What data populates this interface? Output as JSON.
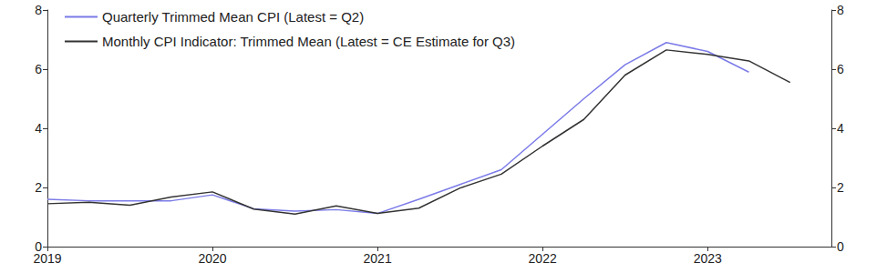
{
  "chart_data": {
    "type": "line",
    "x": [
      2019,
      2019.25,
      2019.5,
      2019.75,
      2020,
      2020.25,
      2020.5,
      2020.75,
      2021,
      2021.25,
      2021.5,
      2021.75,
      2022,
      2022.25,
      2022.5,
      2022.75,
      2023,
      2023.25,
      2023.5
    ],
    "series": [
      {
        "name": "Quarterly Trimmed Mean CPI (Latest = Q2)",
        "color": "#7b7be8",
        "values": [
          1.6,
          1.55,
          1.55,
          1.55,
          1.75,
          1.28,
          1.2,
          1.25,
          1.12,
          1.6,
          2.1,
          2.6,
          3.8,
          5.0,
          6.15,
          6.9,
          6.6,
          5.9,
          null
        ]
      },
      {
        "name": "Monthly CPI Indicator: Trimmed Mean (Latest = CE Estimate for Q3)",
        "color": "#333333",
        "values": [
          1.45,
          1.5,
          1.4,
          1.68,
          1.85,
          1.27,
          1.1,
          1.38,
          1.12,
          1.3,
          1.98,
          2.45,
          3.4,
          4.3,
          5.8,
          6.65,
          6.5,
          6.28,
          5.55
        ]
      }
    ],
    "xlim": [
      2019,
      2023.75
    ],
    "xticks": [
      2019,
      2020,
      2021,
      2022,
      2023
    ],
    "ylim": [
      0,
      8
    ],
    "yticks": [
      0,
      2,
      4,
      6,
      8
    ],
    "y2lim": [
      0,
      8
    ],
    "y2ticks": [
      0,
      2,
      4,
      6,
      8
    ],
    "grid": false,
    "legend": "top-left"
  }
}
